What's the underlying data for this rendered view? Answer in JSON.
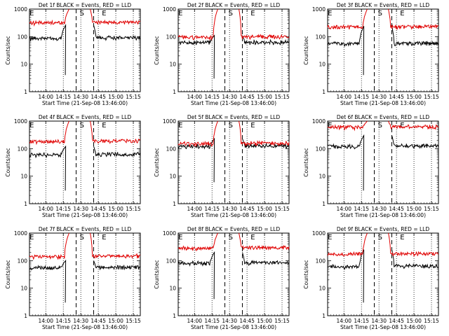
{
  "figure": {
    "ylabel": "Counts/sec",
    "xlabel": "Start Time (21-Sep-08 13:46:00)",
    "colors": {
      "events": "#000000",
      "lld": "#e00000",
      "axes": "#000000"
    }
  },
  "chart_data": [
    {
      "type": "line",
      "title": "Det 1f BLACK = Events, RED = LLD",
      "xlabel": "Start Time (21-Sep-08 13:46:00)",
      "ylabel": "Counts/sec",
      "scale_y": "log",
      "ylim": [
        1,
        1000
      ],
      "xlim": [
        0,
        95
      ],
      "x_tick_values": [
        14,
        29,
        44,
        59,
        74,
        89
      ],
      "x_tick_labels": [
        "14:00",
        "14:15",
        "14:30",
        "14:45",
        "15:00",
        "15:15"
      ],
      "y_tick_labels": [
        "1",
        "10",
        "100",
        "1000"
      ],
      "vertical_lines": [
        {
          "x": 40,
          "style": "dashed"
        },
        {
          "x": 55,
          "style": "dashed"
        },
        {
          "x": 14,
          "style": "dotted"
        },
        {
          "x": 29,
          "style": "dotted"
        },
        {
          "x": 44,
          "style": "dotted"
        },
        {
          "x": 59,
          "style": "dotted"
        },
        {
          "x": 74,
          "style": "dotted"
        },
        {
          "x": 89,
          "style": "dotted"
        }
      ],
      "markers": [
        {
          "x": 2,
          "label": "E"
        },
        {
          "x": 45,
          "label": "S"
        },
        {
          "x": 64,
          "label": "E"
        }
      ],
      "series": [
        {
          "name": "Events",
          "color": "#000000",
          "gap": [
            31,
            55
          ],
          "base": 88,
          "spike_end": 260,
          "dip": 4,
          "dip_x": 30
        },
        {
          "name": "LLD",
          "color": "#e00000",
          "gap": [
            34,
            52
          ],
          "base": 320,
          "rise_peak": 1000,
          "spike_end": 1000
        }
      ]
    },
    {
      "type": "line",
      "title": "Det 2f BLACK = Events, RED = LLD",
      "xlabel": "Start Time (21-Sep-08 13:46:00)",
      "ylabel": "Counts/sec",
      "scale_y": "log",
      "ylim": [
        1,
        1000
      ],
      "xlim": [
        0,
        95
      ],
      "x_tick_values": [
        14,
        29,
        44,
        59,
        74,
        89
      ],
      "x_tick_labels": [
        "14:00",
        "14:15",
        "14:30",
        "14:45",
        "15:00",
        "15:15"
      ],
      "y_tick_labels": [
        "1",
        "10",
        "100",
        "1000"
      ],
      "vertical_lines": [
        {
          "x": 40,
          "style": "dashed"
        },
        {
          "x": 55,
          "style": "dashed"
        },
        {
          "x": 14,
          "style": "dotted"
        },
        {
          "x": 29,
          "style": "dotted"
        },
        {
          "x": 44,
          "style": "dotted"
        },
        {
          "x": 59,
          "style": "dotted"
        },
        {
          "x": 74,
          "style": "dotted"
        },
        {
          "x": 89,
          "style": "dotted"
        }
      ],
      "markers": [
        {
          "x": 2,
          "label": "E"
        },
        {
          "x": 45,
          "label": "S"
        },
        {
          "x": 64,
          "label": "E"
        }
      ],
      "series": [
        {
          "name": "Events",
          "color": "#000000",
          "gap": [
            31,
            55
          ],
          "base": 60,
          "spike_end": 110,
          "dip": 3,
          "dip_x": 30
        },
        {
          "name": "LLD",
          "color": "#e00000",
          "gap": [
            34,
            52
          ],
          "base": 95,
          "rise_peak": 1000,
          "spike_end": 1000
        }
      ]
    },
    {
      "type": "line",
      "title": "Det 3f BLACK = Events, RED = LLD",
      "xlabel": "Start Time (21-Sep-08 13:46:00)",
      "ylabel": "Counts/sec",
      "scale_y": "log",
      "ylim": [
        1,
        1000
      ],
      "xlim": [
        0,
        95
      ],
      "x_tick_values": [
        14,
        29,
        44,
        59,
        74,
        89
      ],
      "x_tick_labels": [
        "14:00",
        "14:15",
        "14:30",
        "14:45",
        "15:00",
        "15:15"
      ],
      "y_tick_labels": [
        "1",
        "10",
        "100",
        "1000"
      ],
      "vertical_lines": [
        {
          "x": 40,
          "style": "dashed"
        },
        {
          "x": 55,
          "style": "dashed"
        },
        {
          "x": 14,
          "style": "dotted"
        },
        {
          "x": 29,
          "style": "dotted"
        },
        {
          "x": 44,
          "style": "dotted"
        },
        {
          "x": 59,
          "style": "dotted"
        },
        {
          "x": 74,
          "style": "dotted"
        },
        {
          "x": 89,
          "style": "dotted"
        }
      ],
      "markers": [
        {
          "x": 2,
          "label": "E"
        },
        {
          "x": 45,
          "label": "S"
        },
        {
          "x": 64,
          "label": "E"
        }
      ],
      "series": [
        {
          "name": "Events",
          "color": "#000000",
          "gap": [
            31,
            55
          ],
          "base": 55,
          "spike_end": 240,
          "dip": 4,
          "dip_x": 30
        },
        {
          "name": "LLD",
          "color": "#e00000",
          "gap": [
            34,
            52
          ],
          "base": 220,
          "rise_peak": 1000,
          "spike_end": 1000
        }
      ]
    },
    {
      "type": "line",
      "title": "Det 4f BLACK = Events, RED = LLD",
      "xlabel": "Start Time (21-Sep-08 13:46:00)",
      "ylabel": "Counts/sec",
      "scale_y": "log",
      "ylim": [
        1,
        1000
      ],
      "xlim": [
        0,
        95
      ],
      "x_tick_values": [
        14,
        29,
        44,
        59,
        74,
        89
      ],
      "x_tick_labels": [
        "14:00",
        "14:15",
        "14:30",
        "14:45",
        "15:00",
        "15:15"
      ],
      "y_tick_labels": [
        "1",
        "10",
        "100",
        "1000"
      ],
      "vertical_lines": [
        {
          "x": 40,
          "style": "dashed"
        },
        {
          "x": 55,
          "style": "dashed"
        },
        {
          "x": 14,
          "style": "dotted"
        },
        {
          "x": 29,
          "style": "dotted"
        },
        {
          "x": 44,
          "style": "dotted"
        },
        {
          "x": 59,
          "style": "dotted"
        },
        {
          "x": 74,
          "style": "dotted"
        },
        {
          "x": 89,
          "style": "dotted"
        }
      ],
      "markers": [
        {
          "x": 2,
          "label": "E"
        },
        {
          "x": 45,
          "label": "S"
        },
        {
          "x": 64,
          "label": "E"
        }
      ],
      "series": [
        {
          "name": "Events",
          "color": "#000000",
          "gap": [
            31,
            55
          ],
          "base": 60,
          "spike_end": 120,
          "dip": 3,
          "dip_x": 30
        },
        {
          "name": "LLD",
          "color": "#e00000",
          "gap": [
            34,
            52
          ],
          "base": 180,
          "rise_peak": 1000,
          "spike_end": 1000
        }
      ]
    },
    {
      "type": "line",
      "title": "Det 5f BLACK = Events, RED = LLD",
      "xlabel": "Start Time (21-Sep-08 13:46:00)",
      "ylabel": "Counts/sec",
      "scale_y": "log",
      "ylim": [
        1,
        1000
      ],
      "xlim": [
        0,
        95
      ],
      "x_tick_values": [
        14,
        29,
        44,
        59,
        74,
        89
      ],
      "x_tick_labels": [
        "14:00",
        "14:15",
        "14:30",
        "14:45",
        "15:00",
        "15:15"
      ],
      "y_tick_labels": [
        "1",
        "10",
        "100",
        "1000"
      ],
      "vertical_lines": [
        {
          "x": 40,
          "style": "dashed"
        },
        {
          "x": 55,
          "style": "dashed"
        },
        {
          "x": 14,
          "style": "dotted"
        },
        {
          "x": 29,
          "style": "dotted"
        },
        {
          "x": 44,
          "style": "dotted"
        },
        {
          "x": 59,
          "style": "dotted"
        },
        {
          "x": 74,
          "style": "dotted"
        },
        {
          "x": 89,
          "style": "dotted"
        }
      ],
      "markers": [
        {
          "x": 2,
          "label": "E"
        },
        {
          "x": 45,
          "label": "S"
        },
        {
          "x": 64,
          "label": "E"
        }
      ],
      "series": [
        {
          "name": "Events",
          "color": "#000000",
          "gap": [
            31,
            55
          ],
          "base": 120,
          "spike_end": 230,
          "dip": 6,
          "dip_x": 30
        },
        {
          "name": "LLD",
          "color": "#e00000",
          "gap": [
            34,
            52
          ],
          "base": 150,
          "rise_peak": 1000,
          "spike_end": 1000
        }
      ]
    },
    {
      "type": "line",
      "title": "Det 6f BLACK = Events, RED = LLD",
      "xlabel": "Start Time (21-Sep-08 13:46:00)",
      "ylabel": "Counts/sec",
      "scale_y": "log",
      "ylim": [
        1,
        1000
      ],
      "xlim": [
        0,
        95
      ],
      "x_tick_values": [
        14,
        29,
        44,
        59,
        74,
        89
      ],
      "x_tick_labels": [
        "14:00",
        "14:15",
        "14:30",
        "14:45",
        "15:00",
        "15:15"
      ],
      "y_tick_labels": [
        "1",
        "10",
        "100",
        "1000"
      ],
      "vertical_lines": [
        {
          "x": 40,
          "style": "dashed"
        },
        {
          "x": 55,
          "style": "dashed"
        },
        {
          "x": 14,
          "style": "dotted"
        },
        {
          "x": 29,
          "style": "dotted"
        },
        {
          "x": 44,
          "style": "dotted"
        },
        {
          "x": 59,
          "style": "dotted"
        },
        {
          "x": 74,
          "style": "dotted"
        },
        {
          "x": 89,
          "style": "dotted"
        }
      ],
      "markers": [
        {
          "x": 2,
          "label": "E"
        },
        {
          "x": 45,
          "label": "S"
        },
        {
          "x": 64,
          "label": "E"
        }
      ],
      "series": [
        {
          "name": "Events",
          "color": "#000000",
          "gap": [
            31,
            55
          ],
          "base": 120,
          "spike_end": 300,
          "dip": 3,
          "dip_x": 30
        },
        {
          "name": "LLD",
          "color": "#e00000",
          "gap": [
            34,
            52
          ],
          "base": 600,
          "rise_peak": 1000,
          "spike_end": 1000
        }
      ]
    },
    {
      "type": "line",
      "title": "Det 7f BLACK = Events, RED = LLD",
      "xlabel": "Start Time (21-Sep-08 13:46:00)",
      "ylabel": "Counts/sec",
      "scale_y": "log",
      "ylim": [
        1,
        1000
      ],
      "xlim": [
        0,
        95
      ],
      "x_tick_values": [
        14,
        29,
        44,
        59,
        74,
        89
      ],
      "x_tick_labels": [
        "14:00",
        "14:15",
        "14:30",
        "14:45",
        "15:00",
        "15:15"
      ],
      "y_tick_labels": [
        "1",
        "10",
        "100",
        "1000"
      ],
      "vertical_lines": [
        {
          "x": 40,
          "style": "dashed"
        },
        {
          "x": 55,
          "style": "dashed"
        },
        {
          "x": 14,
          "style": "dotted"
        },
        {
          "x": 29,
          "style": "dotted"
        },
        {
          "x": 44,
          "style": "dotted"
        },
        {
          "x": 59,
          "style": "dotted"
        },
        {
          "x": 74,
          "style": "dotted"
        },
        {
          "x": 89,
          "style": "dotted"
        }
      ],
      "markers": [
        {
          "x": 2,
          "label": "E"
        },
        {
          "x": 45,
          "label": "S"
        },
        {
          "x": 64,
          "label": "E"
        }
      ],
      "series": [
        {
          "name": "Events",
          "color": "#000000",
          "gap": [
            31,
            55
          ],
          "base": 55,
          "spike_end": 100,
          "dip": 3,
          "dip_x": 30
        },
        {
          "name": "LLD",
          "color": "#e00000",
          "gap": [
            34,
            52
          ],
          "base": 140,
          "rise_peak": 1000,
          "spike_end": 1000
        }
      ]
    },
    {
      "type": "line",
      "title": "Det 8f BLACK = Events, RED = LLD",
      "xlabel": "Start Time (21-Sep-08 13:46:00)",
      "ylabel": "Counts/sec",
      "scale_y": "log",
      "ylim": [
        1,
        1000
      ],
      "xlim": [
        0,
        95
      ],
      "x_tick_values": [
        14,
        29,
        44,
        59,
        74,
        89
      ],
      "x_tick_labels": [
        "14:00",
        "14:15",
        "14:30",
        "14:45",
        "15:00",
        "15:15"
      ],
      "y_tick_labels": [
        "1",
        "10",
        "100",
        "1000"
      ],
      "vertical_lines": [
        {
          "x": 40,
          "style": "dashed"
        },
        {
          "x": 55,
          "style": "dashed"
        },
        {
          "x": 14,
          "style": "dotted"
        },
        {
          "x": 29,
          "style": "dotted"
        },
        {
          "x": 44,
          "style": "dotted"
        },
        {
          "x": 59,
          "style": "dotted"
        },
        {
          "x": 74,
          "style": "dotted"
        },
        {
          "x": 89,
          "style": "dotted"
        }
      ],
      "markers": [
        {
          "x": 2,
          "label": "E"
        },
        {
          "x": 45,
          "label": "S"
        },
        {
          "x": 64,
          "label": "E"
        }
      ],
      "series": [
        {
          "name": "Events",
          "color": "#000000",
          "gap": [
            31,
            55
          ],
          "base": 80,
          "spike_end": 200,
          "dip": 4,
          "dip_x": 30
        },
        {
          "name": "LLD",
          "color": "#e00000",
          "gap": [
            34,
            52
          ],
          "base": 280,
          "rise_peak": 1000,
          "spike_end": 1000
        }
      ]
    },
    {
      "type": "line",
      "title": "Det 9f BLACK = Events, RED = LLD",
      "xlabel": "Start Time (21-Sep-08 13:46:00)",
      "ylabel": "Counts/sec",
      "scale_y": "log",
      "ylim": [
        1,
        1000
      ],
      "xlim": [
        0,
        95
      ],
      "x_tick_values": [
        14,
        29,
        44,
        59,
        74,
        89
      ],
      "x_tick_labels": [
        "14:00",
        "14:15",
        "14:30",
        "14:45",
        "15:00",
        "15:15"
      ],
      "y_tick_labels": [
        "1",
        "10",
        "100",
        "1000"
      ],
      "vertical_lines": [
        {
          "x": 40,
          "style": "dashed"
        },
        {
          "x": 55,
          "style": "dashed"
        },
        {
          "x": 14,
          "style": "dotted"
        },
        {
          "x": 29,
          "style": "dotted"
        },
        {
          "x": 44,
          "style": "dotted"
        },
        {
          "x": 59,
          "style": "dotted"
        },
        {
          "x": 74,
          "style": "dotted"
        },
        {
          "x": 89,
          "style": "dotted"
        }
      ],
      "markers": [
        {
          "x": 2,
          "label": "E"
        },
        {
          "x": 45,
          "label": "S"
        },
        {
          "x": 64,
          "label": "E"
        }
      ],
      "series": [
        {
          "name": "Events",
          "color": "#000000",
          "gap": [
            31,
            55
          ],
          "base": 60,
          "spike_end": 250,
          "dip": 3,
          "dip_x": 30
        },
        {
          "name": "LLD",
          "color": "#e00000",
          "gap": [
            34,
            52
          ],
          "base": 170,
          "rise_peak": 1000,
          "spike_end": 1000
        }
      ]
    }
  ]
}
